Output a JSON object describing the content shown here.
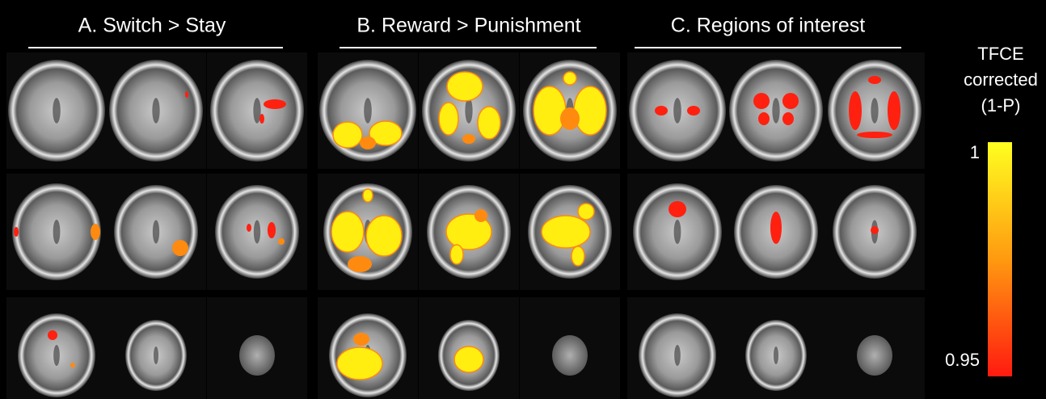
{
  "panels": [
    {
      "title": "A. Switch > Stay"
    },
    {
      "title": "B. Reward > Punishment"
    },
    {
      "title": "C. Regions of interest"
    }
  ],
  "colorbar": {
    "title_lines": [
      "TFCE",
      "corrected",
      "(1-P)"
    ],
    "ticks": [
      1,
      0.95
    ]
  }
}
